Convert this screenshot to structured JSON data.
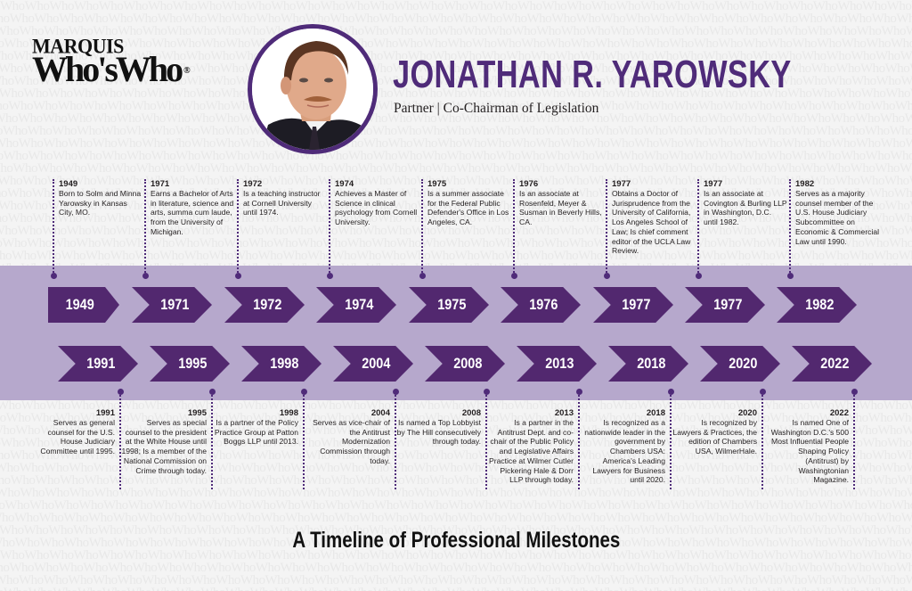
{
  "branding": {
    "logo_top": "MARQUIS",
    "logo_main": "Who'sWho",
    "logo_mark": "®",
    "background_pattern_word": "WhoWho"
  },
  "profile": {
    "name": "JONATHAN R. YAROWSKY",
    "title": "Partner | Co-Chairman of Legislation",
    "photo": "portrait-photo"
  },
  "colors": {
    "accent_purple": "#4f2b79",
    "chevron_purple": "#52286f",
    "band_lavender": "#b6a8cc",
    "background": "#f4f4f4"
  },
  "timeline": {
    "top_row": [
      {
        "year": "1949",
        "text": "Born to Solm and Minna Yarowsky in Kansas City, MO."
      },
      {
        "year": "1971",
        "text": "Earns a Bachelor of Arts in literature, science and arts, summa cum laude, from the University of Michigan."
      },
      {
        "year": "1972",
        "text": "Is a teaching instructor at Cornell University until 1974."
      },
      {
        "year": "1974",
        "text": "Achieves a Master of Science in clinical psychology from Cornell University."
      },
      {
        "year": "1975",
        "text": "Is a summer associate for the Federal Public Defender's Office in Los Angeles, CA."
      },
      {
        "year": "1976",
        "text": "Is an associate at Rosenfeld, Meyer & Susman in Beverly Hills, CA."
      },
      {
        "year": "1977",
        "text": "Obtains a Doctor of Jurisprudence from the University of California, Los Angeles School of Law; Is chief comment editor of the UCLA Law Review."
      },
      {
        "year": "1977",
        "text": "Is an associate at Covington & Burling LLP in Washington, D.C. until 1982."
      },
      {
        "year": "1982",
        "text": "Serves as a majority counsel member of the U.S. House Judiciary Subcommittee on Economic & Commercial Law until 1990."
      }
    ],
    "bottom_row": [
      {
        "year": "1991",
        "text": "Serves as general counsel for the U.S. House Judiciary Committee until 1995."
      },
      {
        "year": "1995",
        "text": "Serves as special counsel to the president at the White House until 1998; Is a member of the National Commission on Crime through today."
      },
      {
        "year": "1998",
        "text": "Is a partner of the Policy Practice Group at Patton Boggs LLP until 2013."
      },
      {
        "year": "2004",
        "text": "Serves as vice-chair of the Antitrust Modernization Commission through today."
      },
      {
        "year": "2008",
        "text": "Is named a Top Lobbyist by The Hill consecutively through today."
      },
      {
        "year": "2013",
        "text": "Is a partner in the Antitrust Dept. and co-chair of the Public Policy and Legislative Affairs Practice at Wilmer Cutler Pickering Hale & Dorr LLP through today."
      },
      {
        "year": "2018",
        "text": "Is recognized as a nationwide leader in the government by Chambers USA: America's Leading Lawyers for Business until 2020."
      },
      {
        "year": "2020",
        "text": "Is recognized by Lawyers & Practices, the edition of Chambers USA, WilmerHale."
      },
      {
        "year": "2022",
        "text": "Is named One of Washington D.C.'s 500 Most Influential People Shaping Policy (Antitrust) by Washingtonian Magazine."
      }
    ]
  },
  "footer": {
    "title": "A Timeline of Professional Milestones"
  }
}
